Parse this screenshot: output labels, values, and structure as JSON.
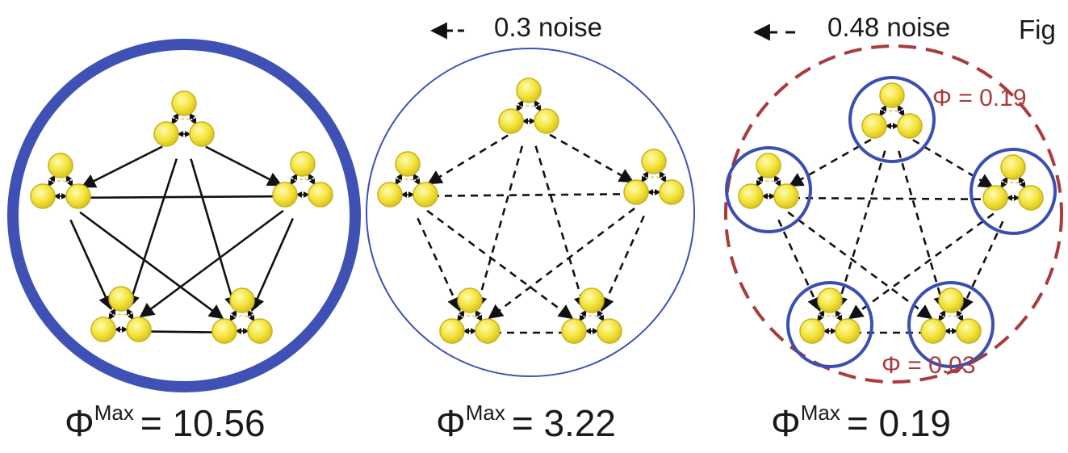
{
  "legend": {
    "noise_a": "0.3 noise",
    "noise_b": "0.48 noise",
    "fig_label": "Fig"
  },
  "panels": [
    {
      "id": "left",
      "caption_symbol": "Φ",
      "caption_sup": "Max",
      "caption_value": "= 10.56",
      "edge_style": "solid"
    },
    {
      "id": "middle",
      "caption_symbol": "Φ",
      "caption_sup": "Max",
      "caption_value": "= 3.22",
      "edge_style": "dashed"
    },
    {
      "id": "right",
      "caption_symbol": "Φ",
      "caption_sup": "Max",
      "caption_value": "= 0.19",
      "edge_style": "dashed",
      "annotations": [
        "Φ = 0.19",
        "Φ = 0.03"
      ]
    }
  ],
  "colors": {
    "strong_ring": "#3f51b5",
    "thin_ring": "#3f51b5",
    "cluster_ring": "#3a4fb0",
    "dashed_ring": "#a83b3e",
    "node_fill": "#f5e642",
    "node_stroke": "#c8b21a",
    "edge": "#111111"
  }
}
